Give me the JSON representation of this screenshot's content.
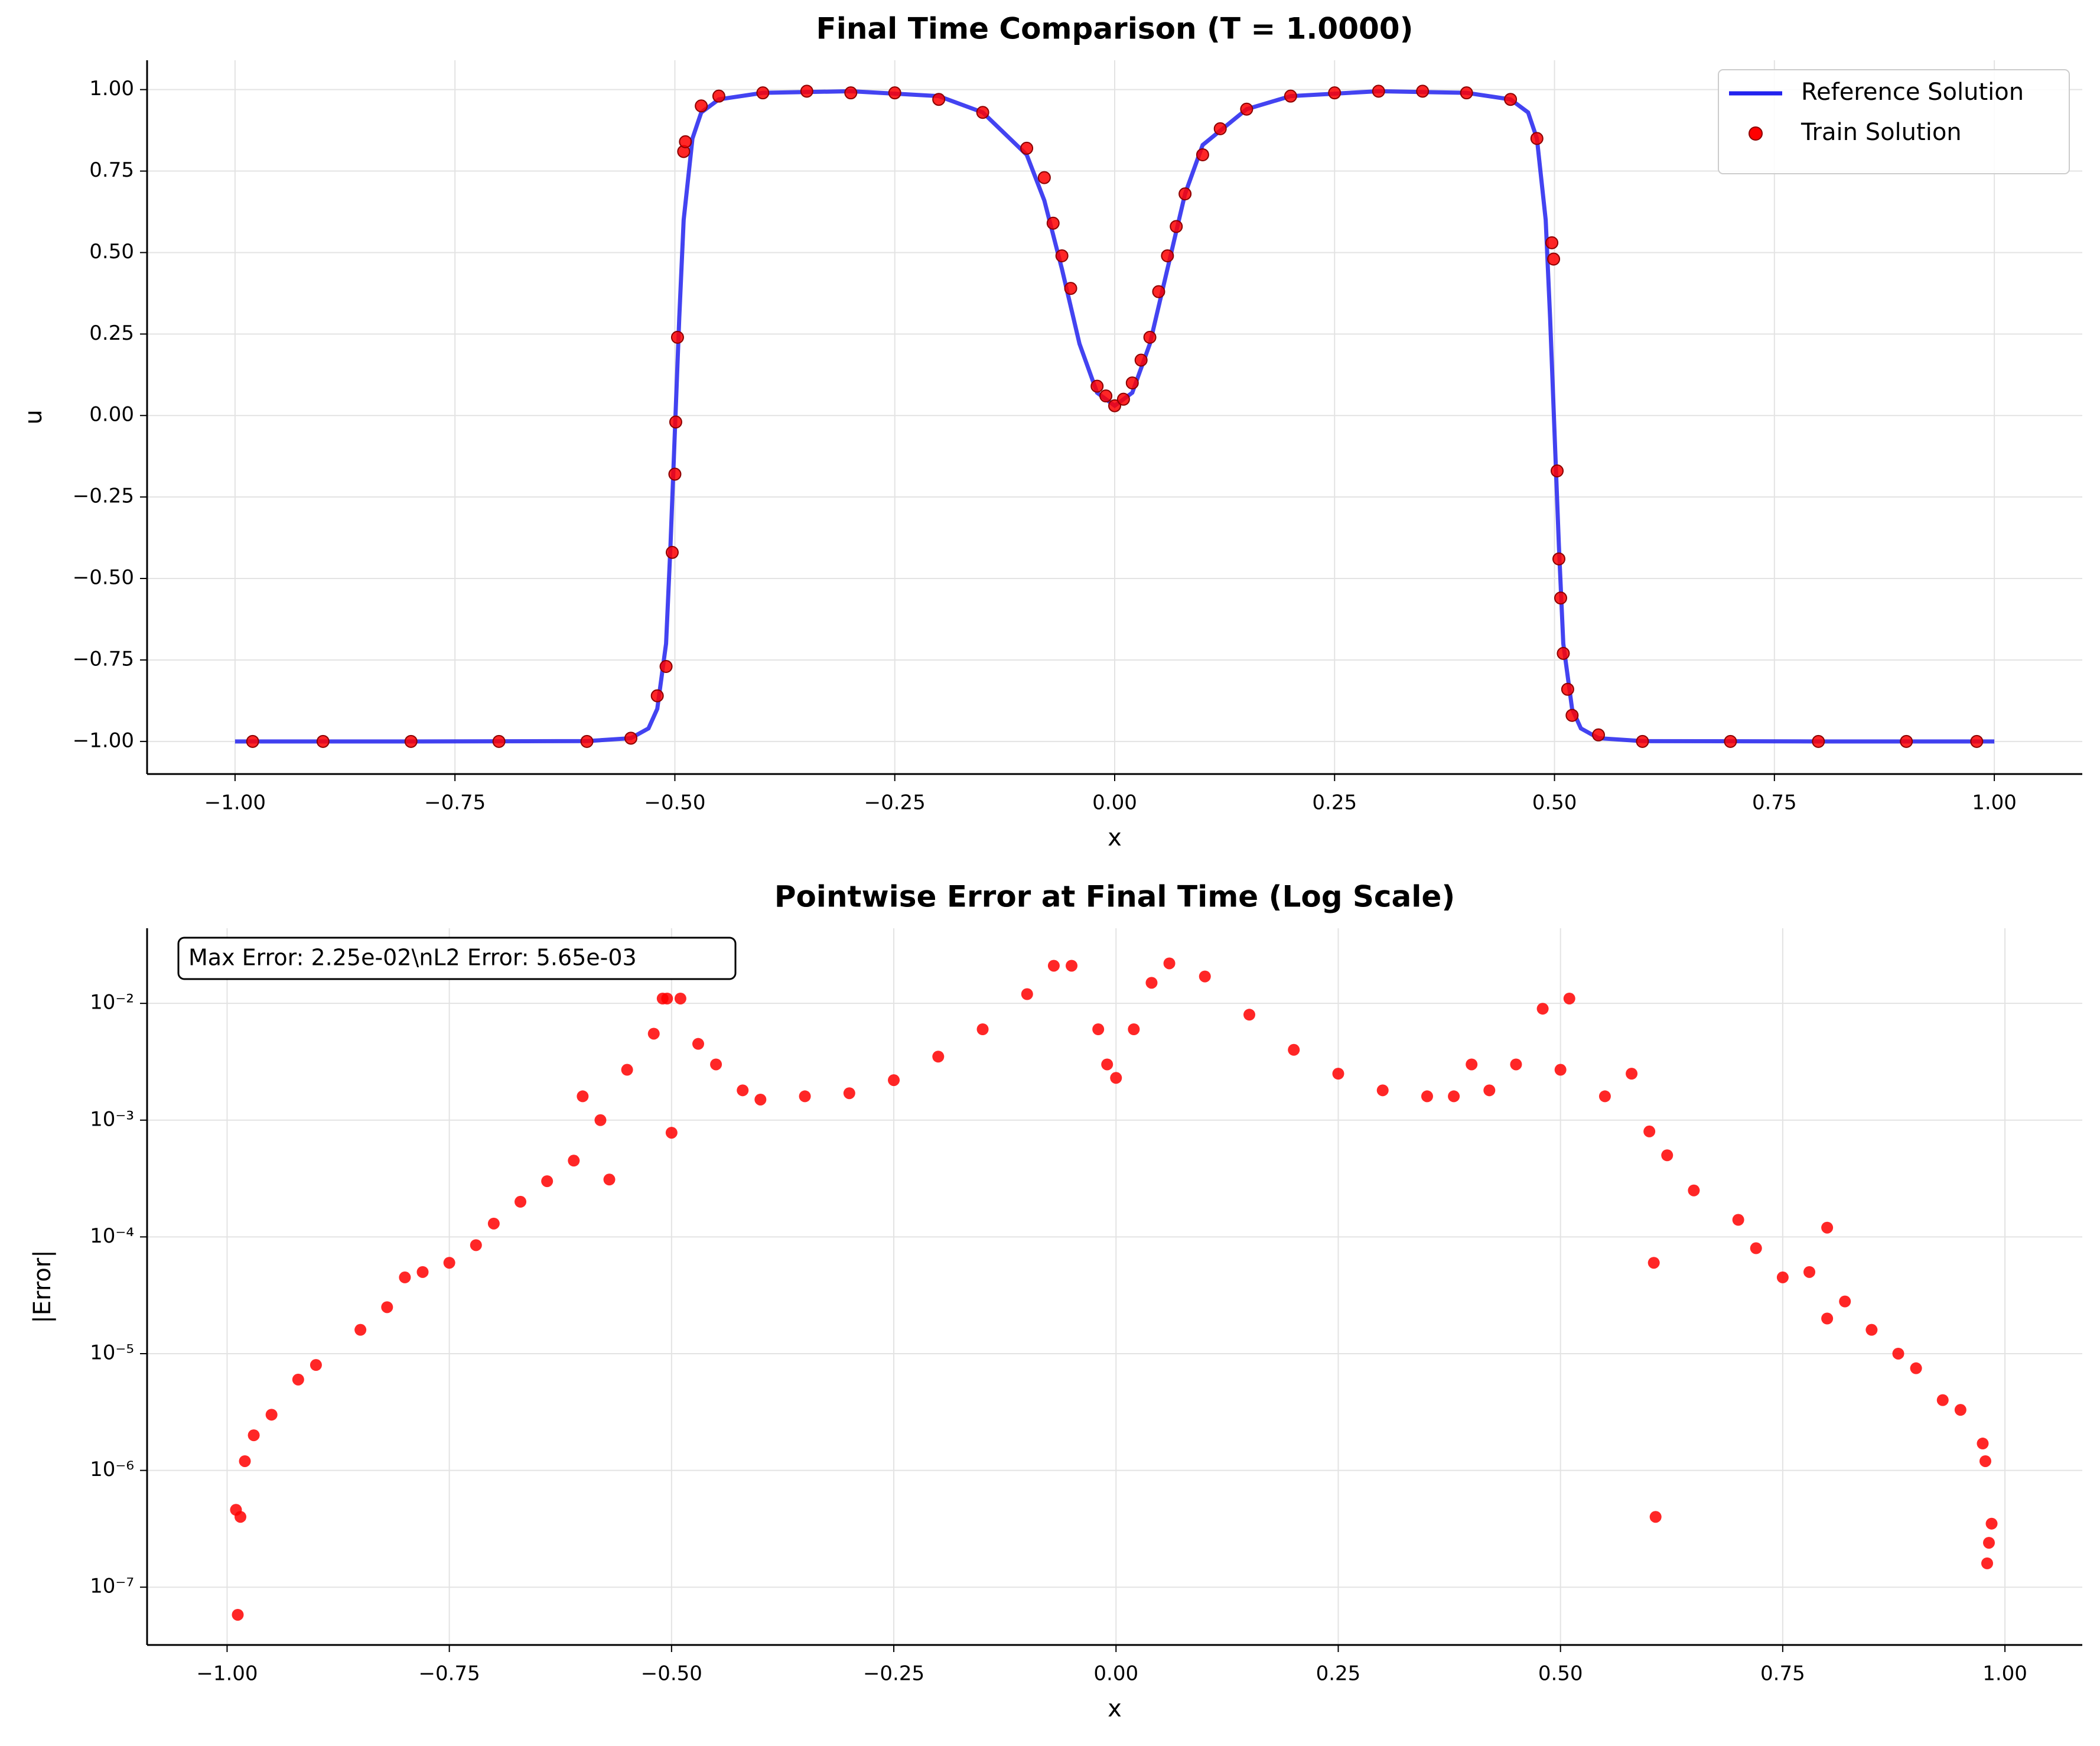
{
  "chart_data": [
    {
      "type": "line",
      "title": "Final Time Comparison (T = 1.0000)",
      "xlabel": "x",
      "ylabel": "u",
      "xlim": [
        -1.1,
        1.1
      ],
      "ylim": [
        -1.1,
        1.09
      ],
      "grid": true,
      "legend": "upper right",
      "xticks": [
        {
          "value": -1,
          "label": "−1.00"
        },
        {
          "value": -0.75,
          "label": "−0.75"
        },
        {
          "value": -0.5,
          "label": "−0.50"
        },
        {
          "value": -0.25,
          "label": "−0.25"
        },
        {
          "value": 0,
          "label": "0.00"
        },
        {
          "value": 0.25,
          "label": "0.25"
        },
        {
          "value": 0.5,
          "label": "0.50"
        },
        {
          "value": 0.75,
          "label": "0.75"
        },
        {
          "value": 1,
          "label": "1.00"
        }
      ],
      "yticks": [
        {
          "value": -1,
          "label": "−1.00"
        },
        {
          "value": -0.75,
          "label": "−0.75"
        },
        {
          "value": -0.5,
          "label": "−0.50"
        },
        {
          "value": -0.25,
          "label": "−0.25"
        },
        {
          "value": 0,
          "label": "0.00"
        },
        {
          "value": 0.25,
          "label": "0.25"
        },
        {
          "value": 0.5,
          "label": "0.50"
        },
        {
          "value": 0.75,
          "label": "0.75"
        },
        {
          "value": 1,
          "label": "1.00"
        }
      ],
      "series": [
        {
          "name": "Reference Solution",
          "type": "line",
          "color": "#2222ee",
          "x": [
            -1.0,
            -0.8,
            -0.6,
            -0.55,
            -0.53,
            -0.52,
            -0.51,
            -0.505,
            -0.5,
            -0.495,
            -0.49,
            -0.48,
            -0.47,
            -0.45,
            -0.4,
            -0.3,
            -0.2,
            -0.15,
            -0.1,
            -0.08,
            -0.06,
            -0.04,
            -0.02,
            0,
            0.02,
            0.04,
            0.06,
            0.08,
            0.1,
            0.15,
            0.2,
            0.3,
            0.4,
            0.45,
            0.47,
            0.48,
            0.49,
            0.495,
            0.5,
            0.505,
            0.51,
            0.52,
            0.53,
            0.55,
            0.6,
            0.8,
            1.0
          ],
          "values": [
            -1,
            -1,
            -0.999,
            -0.99,
            -0.96,
            -0.9,
            -0.7,
            -0.4,
            -0.05,
            0.3,
            0.6,
            0.85,
            0.93,
            0.97,
            0.99,
            0.995,
            0.98,
            0.93,
            0.8,
            0.66,
            0.45,
            0.22,
            0.07,
            0.03,
            0.07,
            0.22,
            0.45,
            0.68,
            0.83,
            0.94,
            0.98,
            0.995,
            0.99,
            0.97,
            0.93,
            0.85,
            0.6,
            0.3,
            -0.05,
            -0.4,
            -0.7,
            -0.9,
            -0.96,
            -0.99,
            -0.999,
            -1,
            -1
          ]
        },
        {
          "name": "Train Solution",
          "type": "scatter",
          "color": "#ff0000",
          "x": [
            -0.98,
            -0.9,
            -0.8,
            -0.7,
            -0.6,
            -0.55,
            -0.52,
            -0.51,
            -0.503,
            -0.5,
            -0.499,
            -0.497,
            -0.49,
            -0.488,
            -0.47,
            -0.45,
            -0.4,
            -0.35,
            -0.3,
            -0.25,
            -0.2,
            -0.15,
            -0.1,
            -0.08,
            -0.07,
            -0.06,
            -0.05,
            -0.02,
            -0.01,
            0,
            0.01,
            0.02,
            0.03,
            0.04,
            0.05,
            0.06,
            0.07,
            0.08,
            0.1,
            0.12,
            0.15,
            0.2,
            0.25,
            0.3,
            0.35,
            0.4,
            0.45,
            0.48,
            0.497,
            0.499,
            0.503,
            0.505,
            0.507,
            0.51,
            0.515,
            0.52,
            0.55,
            0.6,
            0.7,
            0.8,
            0.9,
            0.98
          ],
          "values": [
            -1,
            -1,
            -1,
            -1,
            -1,
            -0.99,
            -0.86,
            -0.77,
            -0.42,
            -0.18,
            -0.02,
            0.24,
            0.81,
            0.84,
            0.95,
            0.98,
            0.99,
            0.995,
            0.99,
            0.99,
            0.97,
            0.93,
            0.82,
            0.73,
            0.59,
            0.49,
            0.39,
            0.09,
            0.06,
            0.03,
            0.05,
            0.1,
            0.17,
            0.24,
            0.38,
            0.49,
            0.58,
            0.68,
            0.8,
            0.88,
            0.94,
            0.98,
            0.99,
            0.995,
            0.995,
            0.99,
            0.97,
            0.85,
            0.53,
            0.48,
            -0.17,
            -0.44,
            -0.56,
            -0.73,
            -0.84,
            -0.92,
            -0.98,
            -1,
            -1,
            -1,
            -1,
            -1
          ]
        }
      ]
    },
    {
      "type": "scatter",
      "title": "Pointwise Error at Final Time (Log Scale)",
      "xlabel": "x",
      "ylabel": "|Error|",
      "yscale": "log",
      "annotation": "Max Error: 2.25e-02\\nL2 Error: 5.65e-03",
      "xlim": [
        -1.09,
        1.087
      ],
      "ylim": [
        3.2e-08,
        0.044
      ],
      "grid": true,
      "xticks": [
        {
          "value": -1,
          "label": "−1.00"
        },
        {
          "value": -0.75,
          "label": "−0.75"
        },
        {
          "value": -0.5,
          "label": "−0.50"
        },
        {
          "value": -0.25,
          "label": "−0.25"
        },
        {
          "value": 0,
          "label": "0.00"
        },
        {
          "value": 0.25,
          "label": "0.25"
        },
        {
          "value": 0.5,
          "label": "0.50"
        },
        {
          "value": 0.75,
          "label": "0.75"
        },
        {
          "value": 1,
          "label": "1.00"
        }
      ],
      "yticks": [
        {
          "value": 1e-07,
          "label": "10⁻⁷"
        },
        {
          "value": 1e-06,
          "label": "10⁻⁶"
        },
        {
          "value": 1e-05,
          "label": "10⁻⁵"
        },
        {
          "value": 0.0001,
          "label": "10⁻⁴"
        },
        {
          "value": 0.001,
          "label": "10⁻³"
        },
        {
          "value": 0.01,
          "label": "10⁻²"
        }
      ],
      "series": [
        {
          "color": "#ff0000",
          "x": [
            -0.99,
            -0.988,
            -0.985,
            -0.98,
            -0.97,
            -0.95,
            -0.92,
            -0.9,
            -0.85,
            -0.82,
            -0.8,
            -0.78,
            -0.75,
            -0.72,
            -0.7,
            -0.67,
            -0.64,
            -0.61,
            -0.6,
            -0.58,
            -0.57,
            -0.55,
            -0.52,
            -0.51,
            -0.505,
            -0.5,
            -0.49,
            -0.47,
            -0.45,
            -0.42,
            -0.4,
            -0.35,
            -0.3,
            -0.25,
            -0.2,
            -0.15,
            -0.1,
            -0.07,
            -0.05,
            -0.02,
            -0.01,
            0,
            0.02,
            0.04,
            0.06,
            0.1,
            0.15,
            0.2,
            0.25,
            0.3,
            0.35,
            0.38,
            0.4,
            0.42,
            0.45,
            0.48,
            0.5,
            0.51,
            0.55,
            0.58,
            0.6,
            0.605,
            0.607,
            0.62,
            0.65,
            0.7,
            0.72,
            0.75,
            0.78,
            0.8,
            0.8,
            0.82,
            0.85,
            0.88,
            0.9,
            0.93,
            0.95,
            0.975,
            0.978,
            0.98,
            0.982,
            0.985
          ],
          "values": [
            4.6e-07,
            5.8e-08,
            4e-07,
            1.2e-06,
            2e-06,
            3e-06,
            6e-06,
            8e-06,
            1.6e-05,
            2.5e-05,
            4.5e-05,
            5e-05,
            6e-05,
            8.5e-05,
            0.00013,
            0.0002,
            0.0003,
            0.00045,
            0.0016,
            0.001,
            0.00031,
            0.0027,
            0.0055,
            0.011,
            0.011,
            0.00078,
            0.011,
            0.0045,
            0.003,
            0.0018,
            0.0015,
            0.0016,
            0.0017,
            0.0022,
            0.0035,
            0.006,
            0.012,
            0.021,
            0.021,
            0.006,
            0.003,
            0.0023,
            0.006,
            0.015,
            0.022,
            0.017,
            0.008,
            0.004,
            0.0025,
            0.0018,
            0.0016,
            0.0016,
            0.003,
            0.0018,
            0.003,
            0.009,
            0.0027,
            0.011,
            0.0016,
            0.0025,
            0.0008,
            6e-05,
            4e-07,
            0.0005,
            0.00025,
            0.00014,
            8e-05,
            4.5e-05,
            5e-05,
            2e-05,
            0.00012,
            2.8e-05,
            1.6e-05,
            1e-05,
            7.5e-06,
            4e-06,
            3.3e-06,
            1.7e-06,
            1.2e-06,
            1.6e-07,
            2.4e-07,
            3.5e-07
          ]
        }
      ]
    }
  ]
}
